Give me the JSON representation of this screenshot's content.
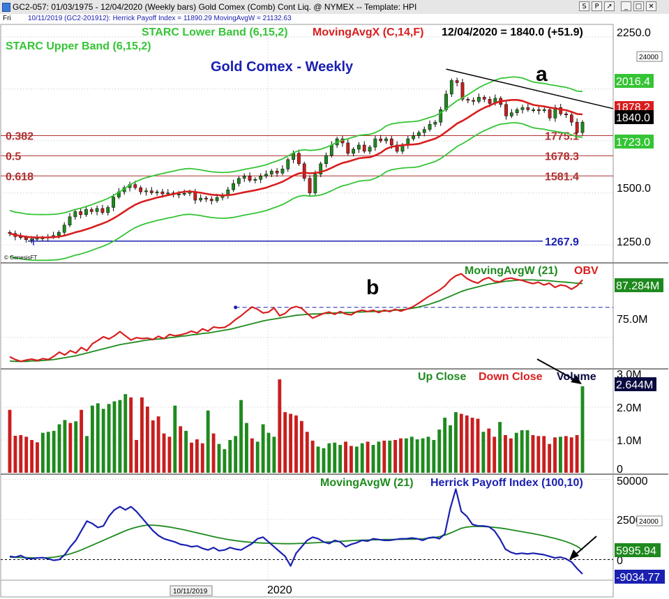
{
  "window": {
    "title": "GC2-057:  01/03/1975 - 12/04/2020  (Weekly bars)   Gold Comex (Comb) Cont Liq. @ NYMEX  --  Template: HPI",
    "buttons": [
      "S",
      "P",
      "↗",
      "_",
      "□",
      "✕"
    ]
  },
  "infobar": {
    "day": "Fri",
    "text": "10/11/2019 (GC2-201912):  Herrick Payoff Index = 11890.29  MovingAvgW = 21132.63"
  },
  "colors": {
    "green_band": "#35c435",
    "red_ma": "#d81e1e",
    "blue": "#1a20b0",
    "dark_green": "#1e8a1e",
    "fib": "#b03030",
    "candle_green": "#1e8a1e",
    "candle_red": "#c81e1e"
  },
  "chart_data": [
    {
      "type": "candlestick",
      "name": "price",
      "legend": {
        "starc_lower": "STARC Lower Band (6,15,2)",
        "moving_avg": "MovingAvgX (C,14,F)",
        "readout": "12/04/2020 = 1840.0 (+51.9)",
        "starc_upper": "STARC Upper Band (6,15,2)"
      },
      "title": "Gold Comex - Weekly",
      "copyright": "© GenesisFT",
      "annotation": "a",
      "y_ticks": [
        "2250.0",
        "1500.0",
        "1250.0"
      ],
      "ylim": [
        1170,
        2300
      ],
      "x_label": "2020",
      "date_box": "10/11/2019",
      "right_boxes": {
        "upper": "2016.4",
        "ma": "1878.2",
        "last": "1840.0",
        "lower": "1723.0",
        "top_box": "24000"
      },
      "fib_levels": [
        {
          "ratio": "0.382",
          "price": 1775.1,
          "label": "1775.1"
        },
        {
          "ratio": "0.5",
          "price": 1678.3,
          "label": "1678.3"
        },
        {
          "ratio": "0.618",
          "price": 1581.4,
          "label": "1581.4"
        }
      ],
      "base_line": {
        "price": 1267.9,
        "label": "1267.9"
      },
      "closes": [
        1305,
        1290,
        1285,
        1275,
        1278,
        1282,
        1284,
        1288,
        1295,
        1310,
        1345,
        1385,
        1410,
        1395,
        1420,
        1410,
        1425,
        1405,
        1430,
        1480,
        1505,
        1525,
        1540,
        1525,
        1505,
        1510,
        1500,
        1505,
        1495,
        1500,
        1492,
        1495,
        1498,
        1505,
        1465,
        1475,
        1470,
        1462,
        1478,
        1490,
        1515,
        1545,
        1570,
        1580,
        1560,
        1565,
        1580,
        1590,
        1605,
        1595,
        1615,
        1660,
        1690,
        1640,
        1570,
        1500,
        1590,
        1640,
        1680,
        1730,
        1760,
        1740,
        1690,
        1710,
        1730,
        1700,
        1720,
        1760,
        1750,
        1760,
        1730,
        1700,
        1730,
        1760,
        1775,
        1790,
        1805,
        1830,
        1840,
        1900,
        1975,
        2040,
        2030,
        1950,
        1945,
        1940,
        1960,
        1950,
        1930,
        1955,
        1925,
        1870,
        1885,
        1900,
        1910,
        1900,
        1900,
        1895,
        1900,
        1860,
        1910,
        1880,
        1875,
        1840,
        1790,
        1840
      ]
    },
    {
      "type": "line",
      "name": "obv",
      "legend": {
        "ma": "MovingAvgW (21)",
        "obv": "OBV"
      },
      "annotation": "b",
      "y_ticks": [
        "75.0M"
      ],
      "right_box": "87.284M",
      "series": [
        {
          "name": "OBV",
          "values": [
            70.8,
            70.2,
            69.8,
            70.1,
            70.3,
            70.0,
            70.4,
            70.2,
            70.9,
            71.8,
            71.2,
            72.1,
            71.6,
            72.8,
            72.1,
            73.6,
            74.3,
            75.1,
            74.6,
            75.3,
            76.2,
            75.3,
            74.4,
            74.9,
            74.7,
            74.8,
            74.5,
            75.2,
            74.7,
            75.6,
            75.3,
            75.5,
            75.8,
            76.3,
            75.9,
            76.8,
            76.3,
            77.2,
            77.0,
            77.1,
            77.8,
            78.8,
            79.6,
            80.6,
            81.5,
            81.0,
            80.2,
            80.4,
            81.3,
            79.6,
            80.1,
            81.2,
            81.6,
            81.2,
            80.1,
            79.1,
            79.6,
            80.1,
            80.4,
            79.9,
            80.5,
            80.0,
            79.8,
            80.5,
            80.8,
            80.5,
            80.8,
            80.3,
            80.8,
            80.5,
            81.0,
            80.6,
            81.0,
            81.4,
            82.1,
            82.9,
            83.7,
            84.4,
            85.1,
            86.0,
            87.3,
            88.2,
            88.6,
            87.6,
            87.0,
            86.6,
            87.4,
            87.8,
            87.0,
            86.9,
            87.5,
            87.7,
            87.4,
            87.2,
            86.8,
            86.5,
            86.8,
            86.2,
            86.6,
            85.7,
            86.2,
            86.0,
            85.3,
            86.0,
            87.3
          ]
        },
        {
          "name": "MovingAvgW (21)",
          "values": [
            69.9,
            69.8,
            69.8,
            69.8,
            69.9,
            69.9,
            70.0,
            70.1,
            70.2,
            70.4,
            70.6,
            70.8,
            71.0,
            71.3,
            71.6,
            71.9,
            72.2,
            72.5,
            72.8,
            73.1,
            73.4,
            73.6,
            73.8,
            74.0,
            74.2,
            74.4,
            74.5,
            74.6,
            74.7,
            74.9,
            75.0,
            75.2,
            75.3,
            75.5,
            75.6,
            75.8,
            75.9,
            76.1,
            76.3,
            76.5,
            76.7,
            77.0,
            77.3,
            77.6,
            77.9,
            78.2,
            78.5,
            78.7,
            78.9,
            79.1,
            79.3,
            79.5,
            79.7,
            79.8,
            79.9,
            80.0,
            80.0,
            80.1,
            80.1,
            80.2,
            80.2,
            80.3,
            80.3,
            80.4,
            80.4,
            80.5,
            80.5,
            80.6,
            80.6,
            80.7,
            80.8,
            80.9,
            81.0,
            81.2,
            81.4,
            81.7,
            82.0,
            82.4,
            82.8,
            83.3,
            83.8,
            84.3,
            84.8,
            85.2,
            85.5,
            85.8,
            86.1,
            86.4,
            86.6,
            86.8,
            87.0,
            87.1,
            87.2,
            87.3,
            87.3,
            87.3,
            87.2,
            87.2,
            87.1,
            87.0,
            86.9,
            86.8,
            86.7,
            86.6,
            86.5
          ]
        }
      ],
      "ylim": [
        68.5,
        90.5
      ]
    },
    {
      "type": "bar",
      "name": "volume",
      "legend": {
        "up": "Up Close",
        "down": "Down Close",
        "vol": "Volume"
      },
      "y_ticks": [
        "3.0M",
        "2.0M",
        "1.0M",
        "0"
      ],
      "right_box": "2.644M",
      "ylim": [
        0,
        3.0
      ],
      "values": [
        1.92,
        1.13,
        1.15,
        1.1,
        1.0,
        0.93,
        1.22,
        1.25,
        1.28,
        1.48,
        1.61,
        1.52,
        1.57,
        1.92,
        1.12,
        2.05,
        2.12,
        1.95,
        2.1,
        2.18,
        2.22,
        2.4,
        2.3,
        1.0,
        2.3,
        2.02,
        1.6,
        1.72,
        1.2,
        1.1,
        2.05,
        1.42,
        1.28,
        0.92,
        1.02,
        0.9,
        1.9,
        1.2,
        0.88,
        0.72,
        1.0,
        1.12,
        2.22,
        1.52,
        1.05,
        0.95,
        1.48,
        1.22,
        1.1,
        2.85,
        1.85,
        1.8,
        1.75,
        1.58,
        1.25,
        0.98,
        0.8,
        0.75,
        0.9,
        0.92,
        0.85,
        0.95,
        0.82,
        0.8,
        0.9,
        0.95,
        0.85,
        0.95,
        0.98,
        0.98,
        1.0,
        1.05,
        1.05,
        1.1,
        1.02,
        1.05,
        1.1,
        1.0,
        1.32,
        1.68,
        1.45,
        1.85,
        1.8,
        1.75,
        1.68,
        1.65,
        1.25,
        1.35,
        1.1,
        1.55,
        1.15,
        1.05,
        1.22,
        1.3,
        1.3,
        1.15,
        1.12,
        1.12,
        0.88,
        1.08,
        1.1,
        1.12,
        1.08,
        1.15,
        2.64
      ],
      "up": [
        false,
        false,
        false,
        false,
        false,
        false,
        true,
        true,
        true,
        true,
        true,
        false,
        true,
        false,
        true,
        true,
        true,
        true,
        true,
        true,
        true,
        true,
        false,
        false,
        false,
        false,
        false,
        false,
        false,
        false,
        true,
        false,
        true,
        false,
        false,
        false,
        true,
        false,
        true,
        true,
        true,
        true,
        true,
        true,
        false,
        true,
        true,
        true,
        true,
        false,
        false,
        false,
        false,
        false,
        false,
        false,
        true,
        true,
        true,
        true,
        true,
        false,
        false,
        true,
        true,
        false,
        true,
        true,
        false,
        true,
        false,
        false,
        true,
        true,
        true,
        true,
        true,
        true,
        true,
        true,
        true,
        true,
        false,
        false,
        false,
        false,
        true,
        false,
        false,
        true,
        false,
        false,
        true,
        true,
        true,
        false,
        false,
        false,
        false,
        false,
        true,
        false,
        false,
        false,
        true
      ]
    },
    {
      "type": "line",
      "name": "hpi",
      "legend": {
        "ma": "MovingAvgW (21)",
        "hpi": "Herrick Payoff Index (100,10)"
      },
      "y_ticks": [
        "50000",
        "25000",
        "0"
      ],
      "right_boxes": {
        "ma": "5995.94",
        "hpi": "-9034.77",
        "top_box": "24000"
      },
      "ylim": [
        -12000,
        52000
      ],
      "series": [
        {
          "name": "Herrick Payoff Index (100,10)",
          "values": [
            2000,
            1500,
            2500,
            800,
            500,
            1000,
            1200,
            500,
            -500,
            0,
            3000,
            8000,
            12000,
            18000,
            24000,
            22500,
            20000,
            21000,
            27000,
            31000,
            33000,
            31000,
            33000,
            30000,
            26000,
            22000,
            18000,
            15000,
            13000,
            12000,
            11000,
            9500,
            9000,
            8000,
            8500,
            7000,
            6000,
            7500,
            5500,
            6000,
            7500,
            6500,
            6000,
            8000,
            10000,
            13000,
            14000,
            11000,
            8000,
            5000,
            2000,
            -4000,
            4000,
            8000,
            12000,
            14000,
            13000,
            11000,
            10000,
            12000,
            11000,
            8000,
            9500,
            10500,
            12000,
            11500,
            13000,
            12500,
            12000,
            12000,
            12500,
            13000,
            13000,
            13500,
            13000,
            12000,
            13500,
            14000,
            13000,
            16000,
            32000,
            44000,
            30000,
            27000,
            22000,
            21000,
            21000,
            20500,
            18000,
            13000,
            6500,
            4500,
            3500,
            4000,
            3500,
            4000,
            3500,
            3000,
            2000,
            1000,
            1500,
            500,
            -1500,
            -5500,
            -9000
          ]
        },
        {
          "name": "MovingAvgW (21)",
          "values": [
            1500,
            1400,
            1300,
            1200,
            1100,
            1000,
            1050,
            1200,
            1500,
            2000,
            2700,
            3600,
            4700,
            6000,
            7500,
            9000,
            10500,
            12000,
            13500,
            15000,
            16500,
            18000,
            19200,
            20200,
            21000,
            21500,
            21500,
            21200,
            20800,
            20300,
            19700,
            19000,
            18300,
            17500,
            16700,
            15900,
            15100,
            14300,
            13600,
            12900,
            12300,
            11800,
            11400,
            11000,
            10700,
            10500,
            10300,
            10200,
            10100,
            10000,
            9900,
            9900,
            10000,
            10100,
            10200,
            10400,
            10600,
            10800,
            11000,
            11200,
            11400,
            11600,
            11800,
            12000,
            12100,
            12200,
            12300,
            12400,
            12500,
            12500,
            12600,
            12600,
            12700,
            12700,
            12800,
            13000,
            13300,
            13700,
            14300,
            15200,
            16500,
            18000,
            19500,
            20300,
            20600,
            20700,
            20600,
            20400,
            20100,
            19700,
            19200,
            18600,
            18000,
            17400,
            16800,
            16200,
            15500,
            14800,
            14000,
            13200,
            12300,
            11200,
            9900,
            8300,
            6000
          ]
        }
      ]
    }
  ]
}
